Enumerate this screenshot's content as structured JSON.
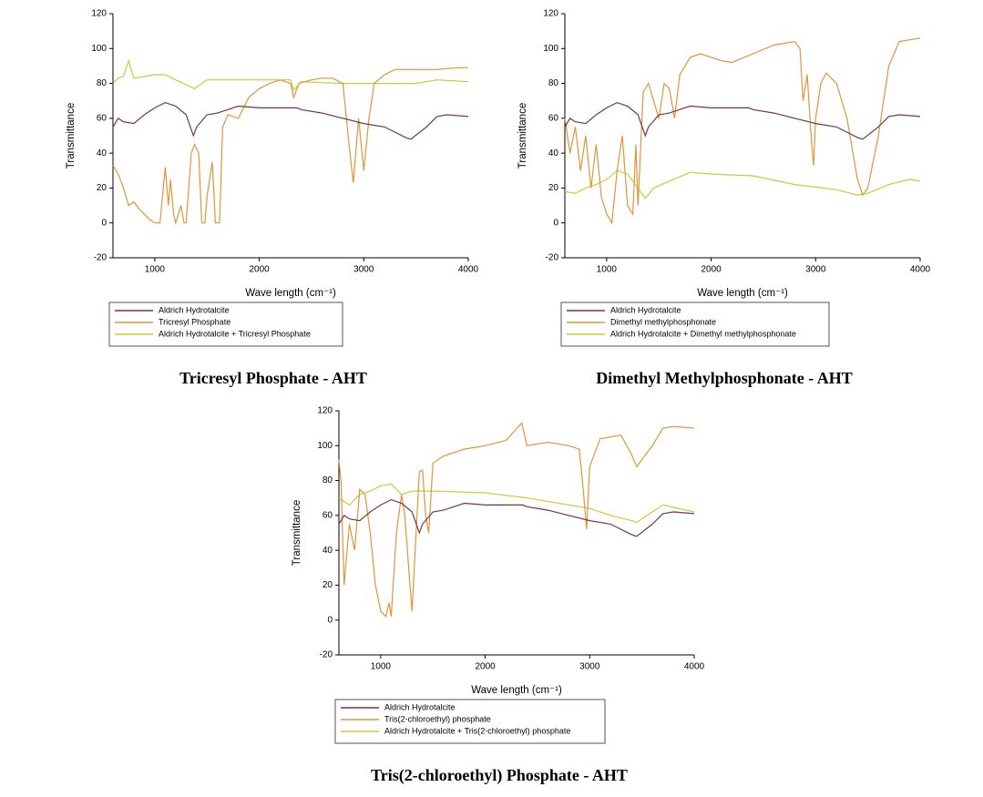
{
  "chart_data": [
    {
      "type": "line",
      "caption": "Tricresyl  Phosphate  -  AHT",
      "x_label": "Wave length (cm⁻¹)",
      "y_label": "Transmittance",
      "xlim": [
        600,
        4000
      ],
      "xticks": [
        1000,
        2000,
        3000,
        4000
      ],
      "ylim": [
        -20,
        120
      ],
      "yticks": [
        -20,
        0,
        20,
        40,
        60,
        80,
        100,
        120
      ],
      "series": [
        {
          "name": "Aldrich Hydrotalcite",
          "color": "#7a3448",
          "x": [
            600,
            650,
            700,
            800,
            900,
            1000,
            1100,
            1200,
            1300,
            1370,
            1400,
            1500,
            1600,
            1700,
            1800,
            2000,
            2200,
            2360,
            2400,
            2600,
            2800,
            3000,
            3200,
            3400,
            3450,
            3600,
            3700,
            3800,
            4000
          ],
          "values": [
            55,
            60,
            58,
            57,
            62,
            66,
            69,
            67,
            62,
            50,
            55,
            62,
            63,
            65,
            67,
            66,
            66,
            66,
            65,
            63,
            60,
            57,
            55,
            49,
            48,
            55,
            61,
            62,
            61
          ]
        },
        {
          "name": "Tricresyl Phosphate",
          "color": "#e0953a",
          "x": [
            600,
            650,
            700,
            750,
            800,
            850,
            900,
            950,
            1000,
            1050,
            1100,
            1130,
            1150,
            1180,
            1200,
            1250,
            1280,
            1300,
            1350,
            1380,
            1420,
            1450,
            1480,
            1500,
            1550,
            1580,
            1620,
            1650,
            1700,
            1800,
            1900,
            2000,
            2100,
            2200,
            2300,
            2330,
            2380,
            2500,
            2600,
            2700,
            2800,
            2850,
            2900,
            2950,
            3000,
            3050,
            3100,
            3200,
            3300,
            3500,
            3700,
            3900,
            4000
          ],
          "values": [
            33,
            28,
            20,
            10,
            12,
            8,
            5,
            2,
            0,
            0,
            32,
            10,
            25,
            5,
            0,
            10,
            0,
            0,
            40,
            45,
            40,
            0,
            0,
            15,
            35,
            0,
            0,
            55,
            62,
            60,
            72,
            77,
            80,
            82,
            80,
            72,
            80,
            82,
            83,
            83,
            80,
            50,
            23,
            60,
            30,
            60,
            80,
            85,
            88,
            88,
            88,
            89,
            89
          ]
        },
        {
          "name": "Aldrich Hydrotalcite + Tricresyl Phosphate",
          "color": "#c8cc3a",
          "x": [
            600,
            650,
            700,
            750,
            800,
            900,
            1000,
            1100,
            1200,
            1380,
            1450,
            1500,
            1600,
            2000,
            2300,
            2330,
            2400,
            2800,
            3000,
            3200,
            3500,
            3700,
            4000
          ],
          "values": [
            80,
            83,
            84,
            93,
            83,
            84,
            85,
            85,
            82,
            77,
            80,
            82,
            82,
            82,
            82,
            76,
            81,
            80,
            80,
            80,
            80,
            82,
            81
          ]
        }
      ]
    },
    {
      "type": "line",
      "caption": "Dimethyl  Methylphosphonate  -  AHT",
      "x_label": "Wave length (cm⁻¹)",
      "y_label": "Transmittance",
      "xlim": [
        600,
        4000
      ],
      "xticks": [
        1000,
        2000,
        3000,
        4000
      ],
      "ylim": [
        -20,
        120
      ],
      "yticks": [
        -20,
        0,
        20,
        40,
        60,
        80,
        100,
        120
      ],
      "series": [
        {
          "name": "Aldrich Hydrotalcite",
          "color": "#7a3448",
          "x": [
            600,
            650,
            700,
            800,
            900,
            1000,
            1100,
            1200,
            1300,
            1370,
            1400,
            1500,
            1600,
            1700,
            1800,
            2000,
            2200,
            2360,
            2400,
            2600,
            2800,
            3000,
            3200,
            3400,
            3450,
            3600,
            3700,
            3800,
            4000
          ],
          "values": [
            55,
            60,
            58,
            57,
            62,
            66,
            69,
            67,
            62,
            50,
            55,
            62,
            63,
            65,
            67,
            66,
            66,
            66,
            65,
            63,
            60,
            57,
            55,
            49,
            48,
            55,
            61,
            62,
            61
          ]
        },
        {
          "name": "Dimethyl methylphosphonate",
          "color": "#e0953a",
          "x": [
            600,
            650,
            700,
            750,
            800,
            850,
            900,
            950,
            1000,
            1050,
            1100,
            1150,
            1200,
            1250,
            1280,
            1300,
            1350,
            1400,
            1450,
            1500,
            1550,
            1600,
            1650,
            1700,
            1800,
            1900,
            2000,
            2100,
            2200,
            2400,
            2600,
            2800,
            2850,
            2880,
            2920,
            2950,
            2980,
            3000,
            3050,
            3100,
            3200,
            3300,
            3400,
            3450,
            3500,
            3600,
            3700,
            3800,
            3900,
            4000
          ],
          "values": [
            60,
            40,
            55,
            30,
            50,
            20,
            45,
            15,
            5,
            0,
            30,
            50,
            10,
            5,
            45,
            10,
            75,
            80,
            70,
            60,
            80,
            77,
            60,
            85,
            95,
            97,
            95,
            93,
            92,
            97,
            102,
            104,
            100,
            70,
            85,
            55,
            33,
            60,
            80,
            86,
            80,
            60,
            25,
            16,
            20,
            50,
            90,
            104,
            105,
            106
          ]
        },
        {
          "name": "Aldrich Hydrotalcite + Dimethyl methylphosphonate",
          "color": "#c8cc3a",
          "x": [
            600,
            700,
            800,
            900,
            1000,
            1100,
            1200,
            1300,
            1370,
            1450,
            1600,
            1800,
            2000,
            2400,
            2800,
            3200,
            3400,
            3500,
            3700,
            3900,
            4000
          ],
          "values": [
            18,
            17,
            20,
            22,
            25,
            30,
            28,
            20,
            14,
            20,
            24,
            29,
            28,
            27,
            22,
            19,
            16,
            17,
            22,
            25,
            24
          ]
        }
      ]
    },
    {
      "type": "line",
      "caption": "Tris(2-chloroethyl)  Phosphate  -  AHT",
      "x_label": "Wave length (cm⁻¹)",
      "y_label": "Transmittance",
      "xlim": [
        600,
        4000
      ],
      "xticks": [
        1000,
        2000,
        3000,
        4000
      ],
      "ylim": [
        -20,
        120
      ],
      "yticks": [
        -20,
        0,
        20,
        40,
        60,
        80,
        100,
        120
      ],
      "series": [
        {
          "name": "Aldrich Hydrotalcite",
          "color": "#7a3448",
          "x": [
            600,
            650,
            700,
            800,
            900,
            1000,
            1100,
            1200,
            1300,
            1370,
            1400,
            1500,
            1600,
            1700,
            1800,
            2000,
            2200,
            2360,
            2400,
            2600,
            2800,
            3000,
            3200,
            3400,
            3450,
            3600,
            3700,
            3800,
            4000
          ],
          "values": [
            55,
            60,
            58,
            57,
            62,
            66,
            69,
            67,
            62,
            50,
            55,
            62,
            63,
            65,
            67,
            66,
            66,
            66,
            65,
            63,
            60,
            57,
            55,
            49,
            48,
            55,
            61,
            62,
            61
          ]
        },
        {
          "name": "Tris(2-chloroethyl) phosphate",
          "color": "#e0953a",
          "x": [
            600,
            620,
            650,
            700,
            750,
            800,
            850,
            900,
            950,
            1000,
            1050,
            1080,
            1100,
            1150,
            1200,
            1230,
            1280,
            1300,
            1330,
            1370,
            1400,
            1430,
            1460,
            1500,
            1600,
            1800,
            2000,
            2200,
            2350,
            2400,
            2600,
            2800,
            2900,
            2930,
            2970,
            3000,
            3100,
            3300,
            3400,
            3450,
            3500,
            3600,
            3700,
            3800,
            4000
          ],
          "values": [
            92,
            80,
            20,
            55,
            40,
            75,
            72,
            50,
            20,
            5,
            2,
            10,
            2,
            50,
            72,
            60,
            20,
            5,
            40,
            85,
            86,
            60,
            50,
            90,
            94,
            98,
            100,
            103,
            113,
            100,
            102,
            100,
            98,
            80,
            52,
            88,
            104,
            106,
            95,
            88,
            92,
            100,
            110,
            111,
            110
          ]
        },
        {
          "name": "Aldrich Hydrotalcite + Tris(2-chloroethyl) phosphate",
          "color": "#c8cc3a",
          "x": [
            600,
            700,
            800,
            900,
            1000,
            1100,
            1200,
            1300,
            1500,
            2000,
            2400,
            2800,
            3000,
            3200,
            3400,
            3450,
            3600,
            3700,
            4000
          ],
          "values": [
            70,
            66,
            72,
            74,
            77,
            78,
            72,
            74,
            74,
            73,
            70,
            66,
            64,
            60,
            57,
            56,
            62,
            66,
            62
          ]
        }
      ]
    }
  ]
}
